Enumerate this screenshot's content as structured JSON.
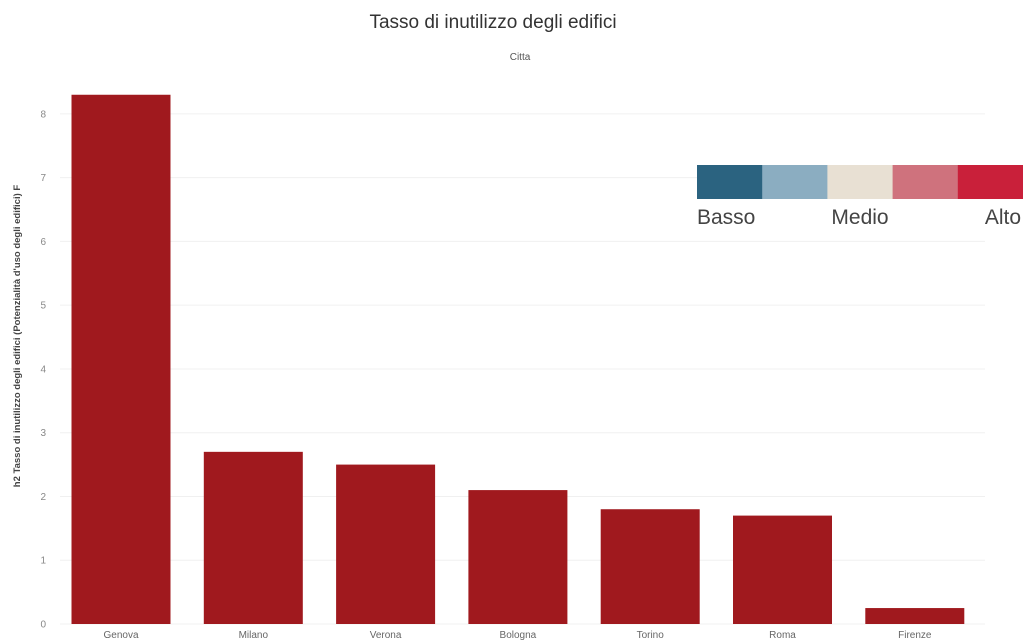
{
  "chart_data": {
    "type": "bar",
    "title": "Tasso di inutilizzo degli edifici",
    "subtitle": "Citta",
    "ylabel": "h2 Tasso di inutilizzo degli edifici (Potenzialità d'uso degli edifici) F",
    "xlabel": "",
    "categories": [
      "Genova",
      "Milano",
      "Verona",
      "Bologna",
      "Torino",
      "Roma",
      "Firenze"
    ],
    "values": [
      8.3,
      2.7,
      2.5,
      2.1,
      1.8,
      1.7,
      0.25
    ],
    "ylim": [
      0,
      8.5
    ],
    "yticks": [
      0,
      1,
      2,
      3,
      4,
      5,
      6,
      7,
      8
    ],
    "grid": true,
    "bar_color": "#a0191e",
    "legend": {
      "placement": "top-right",
      "colors": [
        "#2b6380",
        "#8badc1",
        "#e8e0d3",
        "#cf727d",
        "#c9203a"
      ],
      "labels": [
        "Basso",
        "Medio",
        "Alto"
      ]
    }
  }
}
